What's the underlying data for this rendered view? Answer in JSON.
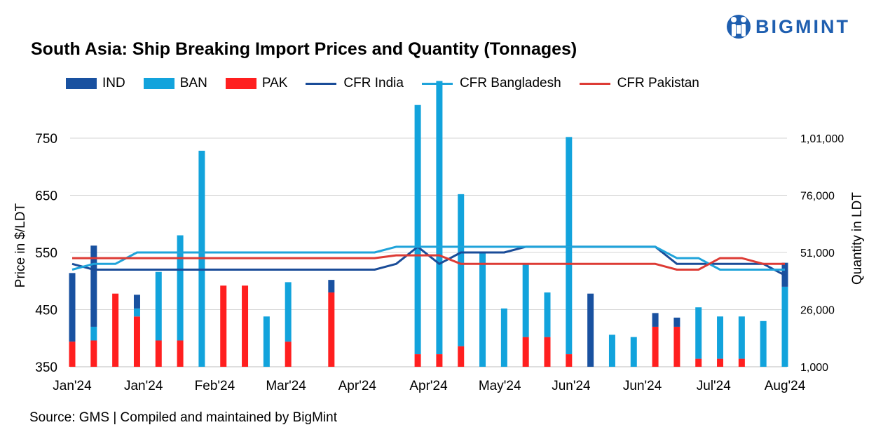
{
  "header": {
    "title": "South Asia: Ship Breaking Import Prices and Quantity (Tonnages)",
    "brand": "BIGMINT"
  },
  "footer": {
    "source": "Source: GMS | Compiled and maintained by BigMint"
  },
  "legend": [
    {
      "label": "IND",
      "kind": "bar",
      "color": "#1951a0"
    },
    {
      "label": "BAN",
      "kind": "bar",
      "color": "#12a3dc"
    },
    {
      "label": "PAK",
      "kind": "bar",
      "color": "#ff1f1f"
    },
    {
      "label": "CFR India",
      "kind": "line",
      "color": "#1a4c98"
    },
    {
      "label": "CFR Bangladesh",
      "kind": "line",
      "color": "#1fa3da"
    },
    {
      "label": "CFR Pakistan",
      "kind": "line",
      "color": "#dd3b35"
    }
  ],
  "chart_data": {
    "type": "bar+line",
    "title": "South Asia: Ship Breaking Import Prices and Quantity (Tonnages)",
    "ylabel": "Price in $/LDT",
    "y2label": "Quantity in LDT",
    "ylim": [
      350,
      750
    ],
    "yticks": [
      350,
      450,
      550,
      650,
      750
    ],
    "ytick_labels": [
      "350",
      "450",
      "550",
      "650",
      "750"
    ],
    "y2lim": [
      1000,
      101000
    ],
    "y2ticks": [
      1000,
      26000,
      51000,
      76000,
      101000
    ],
    "y2tick_labels": [
      "1,000",
      "26,000",
      "51,000",
      "76,000",
      "1,01,000"
    ],
    "x_labels": [
      "Jan'24",
      "Jan'24",
      "Feb'24",
      "Mar'24",
      "Apr'24",
      "Apr'24",
      "May'24",
      "Jun'24",
      "Jun'24",
      "Jul'24",
      "Aug'24"
    ],
    "bar_series": [
      {
        "name": "PAK",
        "color": "#ff1f1f",
        "values": [
          11000,
          11500,
          32000,
          22000,
          11500,
          11500,
          0,
          35500,
          35500,
          0,
          11000,
          0,
          32500,
          0,
          0,
          0,
          5500,
          5500,
          9000,
          0,
          0,
          13000,
          13000,
          5500,
          0,
          0,
          0,
          17500,
          17500,
          3500,
          3500,
          3500,
          0,
          0
        ]
      },
      {
        "name": "BAN",
        "color": "#12a3dc",
        "values": [
          0,
          6000,
          0,
          3500,
          30000,
          46000,
          94500,
          0,
          0,
          22000,
          26000,
          0,
          0,
          0,
          0,
          0,
          109000,
          119500,
          66500,
          50000,
          25500,
          32000,
          19500,
          95000,
          0,
          14000,
          13000,
          0,
          0,
          22500,
          18500,
          18500,
          20000,
          35000
        ]
      },
      {
        "name": "IND",
        "color": "#1951a0",
        "values": [
          30000,
          35500,
          0,
          6000,
          0,
          0,
          0,
          0,
          0,
          0,
          0,
          0,
          5500,
          0,
          0,
          0,
          0,
          0,
          0,
          0,
          0,
          0,
          0,
          0,
          32000,
          0,
          0,
          6000,
          4000,
          0,
          0,
          0,
          0,
          10500
        ]
      }
    ],
    "line_series": [
      {
        "name": "CFR India",
        "color": "#1a4c98",
        "values": [
          530,
          520,
          520,
          520,
          520,
          520,
          520,
          520,
          520,
          520,
          520,
          520,
          520,
          520,
          520,
          530,
          560,
          530,
          550,
          550,
          550,
          560,
          560,
          560,
          560,
          560,
          560,
          560,
          530,
          530,
          530,
          530,
          530,
          510
        ]
      },
      {
        "name": "CFR Bangladesh",
        "color": "#1fa3da",
        "values": [
          520,
          530,
          530,
          550,
          550,
          550,
          550,
          550,
          550,
          550,
          550,
          550,
          550,
          550,
          550,
          560,
          560,
          560,
          560,
          560,
          560,
          560,
          560,
          560,
          560,
          560,
          560,
          560,
          540,
          540,
          520,
          520,
          520,
          520
        ]
      },
      {
        "name": "CFR Pakistan",
        "color": "#dd3b35",
        "values": [
          540,
          540,
          540,
          540,
          540,
          540,
          540,
          540,
          540,
          540,
          540,
          540,
          540,
          540,
          540,
          545,
          545,
          545,
          530,
          530,
          530,
          530,
          530,
          530,
          530,
          530,
          530,
          530,
          520,
          520,
          540,
          540,
          530,
          530
        ]
      }
    ]
  }
}
